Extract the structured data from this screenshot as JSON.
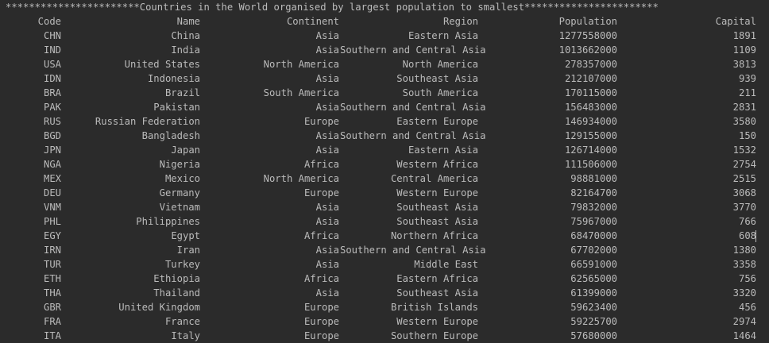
{
  "title": "***********************Countries in the World organised by largest population to smallest***********************",
  "header": {
    "code": "Code",
    "name": "Name",
    "continent": "Continent",
    "region": "Region",
    "population": "Population",
    "capital": "Capital"
  },
  "rows": [
    {
      "code": "CHN",
      "name": "China",
      "continent": "Asia",
      "region": "Eastern Asia",
      "population": "1277558000",
      "capital": "1891"
    },
    {
      "code": "IND",
      "name": "India",
      "continent": "Asia",
      "region": "Southern and Central Asia",
      "population": "1013662000",
      "capital": "1109"
    },
    {
      "code": "USA",
      "name": "United States",
      "continent": "North America",
      "region": "North America",
      "population": "278357000",
      "capital": "3813"
    },
    {
      "code": "IDN",
      "name": "Indonesia",
      "continent": "Asia",
      "region": "Southeast Asia",
      "population": "212107000",
      "capital": "939"
    },
    {
      "code": "BRA",
      "name": "Brazil",
      "continent": "South America",
      "region": "South America",
      "population": "170115000",
      "capital": "211"
    },
    {
      "code": "PAK",
      "name": "Pakistan",
      "continent": "Asia",
      "region": "Southern and Central Asia",
      "population": "156483000",
      "capital": "2831"
    },
    {
      "code": "RUS",
      "name": "Russian Federation",
      "continent": "Europe",
      "region": "Eastern Europe",
      "population": "146934000",
      "capital": "3580"
    },
    {
      "code": "BGD",
      "name": "Bangladesh",
      "continent": "Asia",
      "region": "Southern and Central Asia",
      "population": "129155000",
      "capital": "150"
    },
    {
      "code": "JPN",
      "name": "Japan",
      "continent": "Asia",
      "region": "Eastern Asia",
      "population": "126714000",
      "capital": "1532"
    },
    {
      "code": "NGA",
      "name": "Nigeria",
      "continent": "Africa",
      "region": "Western Africa",
      "population": "111506000",
      "capital": "2754"
    },
    {
      "code": "MEX",
      "name": "Mexico",
      "continent": "North America",
      "region": "Central America",
      "population": "98881000",
      "capital": "2515"
    },
    {
      "code": "DEU",
      "name": "Germany",
      "continent": "Europe",
      "region": "Western Europe",
      "population": "82164700",
      "capital": "3068"
    },
    {
      "code": "VNM",
      "name": "Vietnam",
      "continent": "Asia",
      "region": "Southeast Asia",
      "population": "79832000",
      "capital": "3770"
    },
    {
      "code": "PHL",
      "name": "Philippines",
      "continent": "Asia",
      "region": "Southeast Asia",
      "population": "75967000",
      "capital": "766"
    },
    {
      "code": "EGY",
      "name": "Egypt",
      "continent": "Africa",
      "region": "Northern Africa",
      "population": "68470000",
      "capital": "608"
    },
    {
      "code": "IRN",
      "name": "Iran",
      "continent": "Asia",
      "region": "Southern and Central Asia",
      "population": "67702000",
      "capital": "1380"
    },
    {
      "code": "TUR",
      "name": "Turkey",
      "continent": "Asia",
      "region": "Middle East",
      "population": "66591000",
      "capital": "3358"
    },
    {
      "code": "ETH",
      "name": "Ethiopia",
      "continent": "Africa",
      "region": "Eastern Africa",
      "population": "62565000",
      "capital": "756"
    },
    {
      "code": "THA",
      "name": "Thailand",
      "continent": "Asia",
      "region": "Southeast Asia",
      "population": "61399000",
      "capital": "3320"
    },
    {
      "code": "GBR",
      "name": "United Kingdom",
      "continent": "Europe",
      "region": "British Islands",
      "population": "59623400",
      "capital": "456"
    },
    {
      "code": "FRA",
      "name": "France",
      "continent": "Europe",
      "region": "Western Europe",
      "population": "59225700",
      "capital": "2974"
    },
    {
      "code": "ITA",
      "name": "Italy",
      "continent": "Europe",
      "region": "Southern Europe",
      "population": "57680000",
      "capital": "1464"
    }
  ]
}
